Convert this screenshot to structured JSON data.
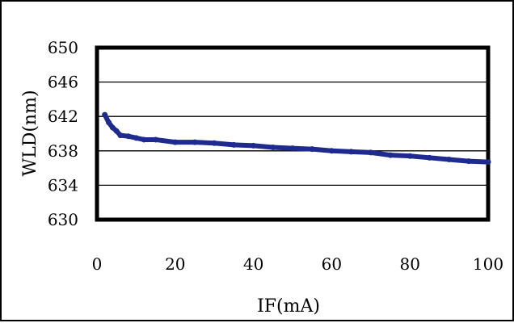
{
  "chart_data": {
    "type": "line",
    "title": "",
    "xlabel": "IF(mA)",
    "ylabel": "WLD(nm)",
    "xlim": [
      0,
      100
    ],
    "ylim": [
      630,
      650
    ],
    "x_ticks": [
      0,
      20,
      40,
      60,
      80,
      100
    ],
    "y_ticks": [
      630,
      634,
      638,
      642,
      646,
      650
    ],
    "grid": "horizontal",
    "legend": "none",
    "series": [
      {
        "color": "#1f2a8f",
        "x": [
          2,
          3,
          4,
          5,
          6,
          8,
          10,
          12,
          15,
          20,
          25,
          30,
          35,
          40,
          45,
          50,
          55,
          60,
          65,
          70,
          75,
          80,
          85,
          90,
          95,
          100
        ],
        "y": [
          642.2,
          641.3,
          640.7,
          640.3,
          639.8,
          639.7,
          639.5,
          639.3,
          639.3,
          639.0,
          639.0,
          638.9,
          638.7,
          638.6,
          638.4,
          638.3,
          638.2,
          638.0,
          637.9,
          637.8,
          637.5,
          637.4,
          637.2,
          637.0,
          636.8,
          636.7
        ]
      }
    ]
  }
}
